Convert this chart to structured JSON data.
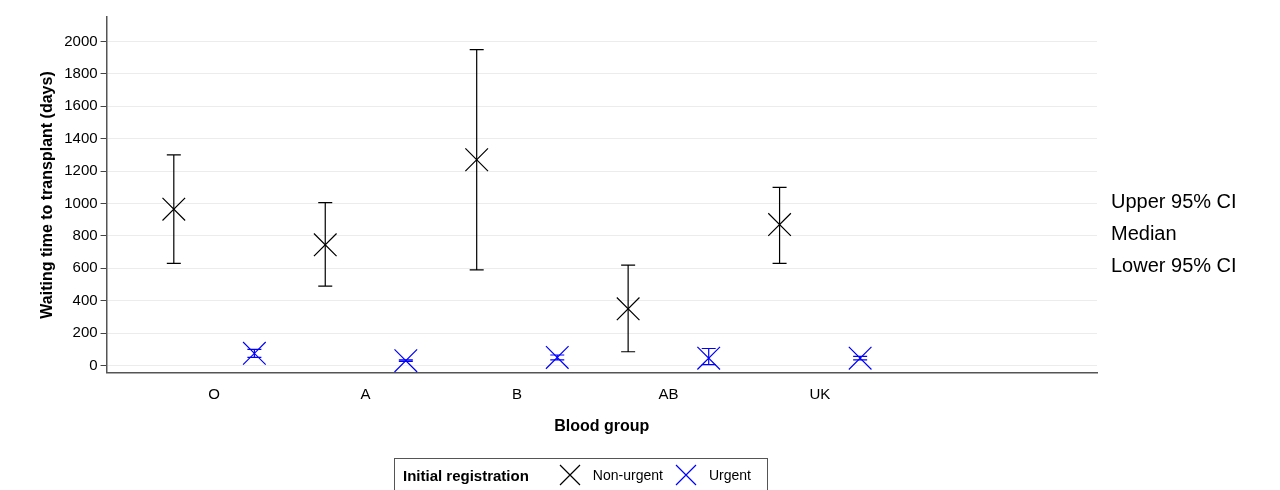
{
  "chart_data": {
    "type": "scatter",
    "xlabel": "Blood group",
    "ylabel": "Waiting time to transplant (days)",
    "legend_title": "Initial registration",
    "categories": [
      "O",
      "A",
      "B",
      "AB",
      "UK"
    ],
    "series": [
      {
        "name": "Non-urgent",
        "color": "#000000",
        "values": [
          965,
          745,
          1270,
          350,
          870
        ],
        "errors": [
          [
            630,
            1300
          ],
          [
            490,
            1005
          ],
          [
            590,
            1950
          ],
          [
            85,
            620
          ],
          [
            630,
            1100
          ]
        ]
      },
      {
        "name": "Urgent",
        "color": "#0000ff",
        "values": [
          75,
          30,
          50,
          45,
          45
        ],
        "errors": [
          [
            50,
            100
          ],
          [
            25,
            35
          ],
          [
            35,
            65
          ],
          [
            5,
            105
          ],
          [
            35,
            57
          ]
        ]
      }
    ],
    "ylim": [
      -45,
      2150
    ],
    "yticks": [
      0,
      200,
      400,
      600,
      800,
      1000,
      1200,
      1400,
      1600,
      1800,
      2000
    ],
    "grid": "y",
    "legend": "bottom",
    "marker": "cross",
    "annotations": [
      "Upper 95% CI",
      "Median",
      "Lower 95% CI"
    ]
  }
}
